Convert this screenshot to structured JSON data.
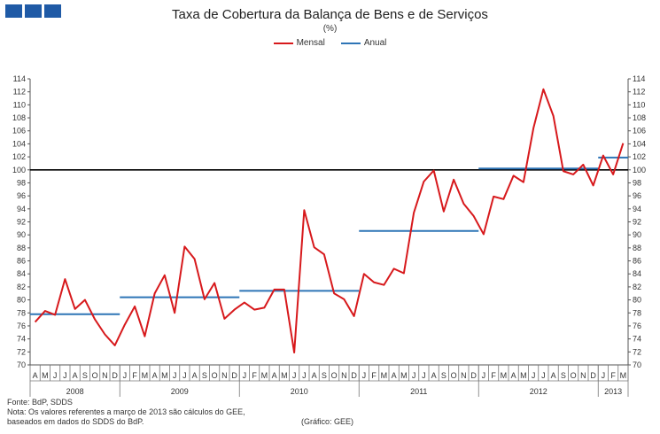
{
  "header": {
    "title": "Taxa de Cobertura da Balança de Bens e de Serviços",
    "subtitle": "(%)"
  },
  "footer": {
    "source": "Fonte: BdP, SDDS",
    "note1": "Nota: Os valores  referentes  a março de 2013 são cálculos do GEE,",
    "note2": "baseados  em dados do SDDS do BdP.",
    "credit": "(Gráfico: GEE)"
  },
  "colors": {
    "mensal": "#d7191c",
    "anual": "#2e75b6",
    "reference": "#000000",
    "logo": "#1f5aa6"
  },
  "chart_data": {
    "type": "line",
    "title": "Taxa de Cobertura da Balança de Bens e de Serviços",
    "subtitle": "(%)",
    "legend_position": "top-center",
    "ylim": [
      70,
      114
    ],
    "ytick_step": 2,
    "reference_line": 100,
    "month_labels": [
      "A",
      "M",
      "J",
      "J",
      "A",
      "S",
      "O",
      "N",
      "D",
      "J",
      "F",
      "M",
      "A",
      "M",
      "J",
      "J",
      "A",
      "S",
      "O",
      "N",
      "D",
      "J",
      "F",
      "M",
      "A",
      "M",
      "J",
      "J",
      "A",
      "S",
      "O",
      "N",
      "D",
      "J",
      "F",
      "M",
      "A",
      "M",
      "J",
      "J",
      "A",
      "S",
      "O",
      "N",
      "D",
      "J",
      "F",
      "M",
      "A",
      "M",
      "J",
      "J",
      "A",
      "S",
      "O",
      "N",
      "D",
      "J",
      "F",
      "M"
    ],
    "years": [
      {
        "label": "2008",
        "start": 0,
        "end": 8
      },
      {
        "label": "2009",
        "start": 9,
        "end": 20
      },
      {
        "label": "2010",
        "start": 21,
        "end": 32
      },
      {
        "label": "2011",
        "start": 33,
        "end": 44
      },
      {
        "label": "2012",
        "start": 45,
        "end": 56
      },
      {
        "label": "2013",
        "start": 57,
        "end": 59
      }
    ],
    "series": [
      {
        "name": "Mensal",
        "values": [
          76.6,
          78.3,
          77.7,
          83.2,
          78.6,
          80.0,
          77.0,
          74.7,
          73.0,
          76.2,
          79.0,
          74.4,
          81.0,
          83.8,
          78.0,
          88.2,
          86.3,
          80.1,
          82.6,
          77.1,
          78.5,
          79.6,
          78.5,
          78.8,
          81.6,
          81.6,
          71.9,
          93.8,
          88.1,
          87.0,
          81.0,
          80.1,
          77.5,
          84.0,
          82.7,
          82.3,
          84.8,
          84.1,
          93.4,
          98.2,
          99.9,
          93.6,
          98.5,
          94.8,
          92.9,
          90.1,
          95.9,
          95.5,
          99.1,
          98.1,
          106.4,
          112.4,
          108.3,
          99.8,
          99.3,
          100.8,
          97.6,
          102.2,
          99.3,
          104.1
        ]
      },
      {
        "name": "Anual",
        "segments": [
          {
            "label": "2008",
            "value": 77.8
          },
          {
            "label": "2009",
            "value": 80.4
          },
          {
            "label": "2010",
            "value": 81.4
          },
          {
            "label": "2011",
            "value": 90.6
          },
          {
            "label": "2012",
            "value": 100.2
          },
          {
            "label": "2013",
            "value": 101.9
          }
        ]
      }
    ]
  }
}
